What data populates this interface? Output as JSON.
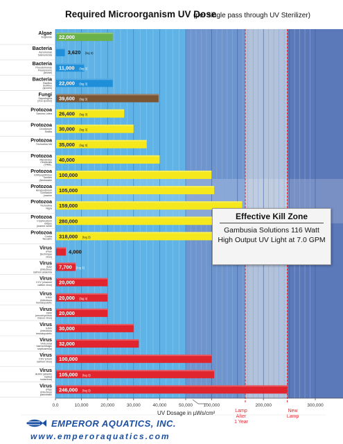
{
  "chart_data": {
    "type": "bar",
    "orientation": "horizontal",
    "title": "Required Microorganism UV Dose",
    "subtitle": "(per single pass through UV Sterilizer)",
    "xlabel": "UV Dosage in µWs/cm²",
    "x_ticks": [
      "0.0",
      "10,000",
      "20,000",
      "30,000",
      "40,000",
      "50,000",
      "100,000",
      "200,000",
      "300,000"
    ],
    "x_scale": "piecewise: linear 0–50,000, then compressed 50,000–300,000",
    "grid": true,
    "categories": [
      {
        "group": "Algae",
        "name": "Euglenas",
        "value": 22000,
        "label": "22,000",
        "color": "#6bb24a"
      },
      {
        "group": "Bacteria",
        "name": "Aeromonas Salmonicida",
        "value": 3620,
        "label": "3,620",
        "log": "(log 3)",
        "color": "#1e8fd8"
      },
      {
        "group": "Bacteria",
        "name": "Pseudomonas Fluorescens (larvae)",
        "value": 11000,
        "label": "11,000",
        "log": "(log 3)",
        "color": "#1e8fd8"
      },
      {
        "group": "Bacteria",
        "name": "Bacillus Subtilus (spores)",
        "value": 22000,
        "label": "22,000",
        "log": "(log 3)",
        "color": "#1e8fd8"
      },
      {
        "group": "Fungi",
        "name": "Saprolegnia (Zoo spores)",
        "value": 39600,
        "label": "39,600",
        "log": "(log 3)",
        "color": "#7b5634"
      },
      {
        "group": "Protozoa",
        "name": "Sarcina Lutea",
        "value": 26400,
        "label": "26,400",
        "log": "(log 3)",
        "color": "#f5e81c"
      },
      {
        "group": "Protozoa",
        "name": "Cicodonym Shatla",
        "value": 30000,
        "label": "30,000",
        "log": "(log 3)",
        "color": "#f5e81c"
      },
      {
        "group": "Protozoa",
        "name": "Trichodina NA",
        "value": 35000,
        "label": "35,000",
        "log": "(log 3)",
        "color": "#f5e81c"
      },
      {
        "group": "Protozoa",
        "name": "Myxobolus Cerebralis (TAMs, Whirling Disease)",
        "value": 40000,
        "label": "40,000",
        "color": "#f5e81c"
      },
      {
        "group": "Protozoa",
        "name": "Ichthyophthirius Tomites (freshwater white spot)",
        "value": 100000,
        "label": "100,000",
        "color": "#f5e81c"
      },
      {
        "group": "Protozoa",
        "name": "Amyloodinium Ocellatum (marine velvet)",
        "value": 105000,
        "label": "105,000",
        "color": "#f5e81c"
      },
      {
        "group": "Protozoa",
        "name": "Trichodina Nigra",
        "value": 159000,
        "label": "159,000",
        "color": "#f5e81c"
      },
      {
        "group": "Protozoa",
        "name": "Cryptocaryon Irritans (marine white spot)",
        "value": 280000,
        "label": "280,000",
        "color": "#f5e81c"
      },
      {
        "group": "Protozoa",
        "name": "Costia Necatrix",
        "value": 318000,
        "label": "318,000",
        "log": "(log 3)",
        "color": "#f5e81c"
      },
      {
        "group": "Virus",
        "name": "IPNV (technique virus)",
        "value": 4000,
        "label": "4,000",
        "color": "#e0252e"
      },
      {
        "group": "Virus",
        "name": "ISAV (infectious salmon anaemia virus)",
        "value": 7700,
        "label": "7,700",
        "log": "(log 3)",
        "color": "#e0252e"
      },
      {
        "group": "Virus",
        "name": "CCV (channel catfish virus)",
        "value": 20000,
        "label": "20,000",
        "color": "#e0252e"
      },
      {
        "group": "Virus",
        "name": "IHNV (infectious hematopoietic necrosis/CHAB)",
        "value": 20000,
        "label": "20,000",
        "log": "(log 3)",
        "color": "#e0252e"
      },
      {
        "group": "Virus",
        "name": "OMV (oncorhynchus masou virus)",
        "value": 20000,
        "label": "20,000",
        "color": "#e0252e"
      },
      {
        "group": "Virus",
        "name": "IHNV (infectious hematopoietic necrosis/STRO)",
        "value": 30000,
        "label": "30,000",
        "color": "#e0252e"
      },
      {
        "group": "Virus",
        "name": "VHS (viral haemorrhagic septicaemia)",
        "value": 32000,
        "label": "32,000",
        "color": "#e0252e"
      },
      {
        "group": "Virus",
        "name": "CSV (chum salmon virus)",
        "value": 100000,
        "label": "100,000",
        "color": "#e0252e"
      },
      {
        "group": "Virus",
        "name": "AHNV (atlantic halibut nodavirus)",
        "value": 105000,
        "label": "105,000",
        "log": "(log 3)",
        "color": "#e0252e"
      },
      {
        "group": "Virus",
        "name": "IPNV (infectious pancreatic necrosis virus)",
        "value": 246000,
        "label": "246,000",
        "log": "(log 3)",
        "color": "#e0252e"
      }
    ],
    "markers": [
      {
        "label": "Lamp After 1 Year",
        "value": 165000
      },
      {
        "label": "New Lamp",
        "value": 246000
      }
    ]
  },
  "kill_zone": {
    "title": "Effective Kill Zone",
    "description": "Gambusia Solutions 116 Watt High Output UV Light at 7.0 GPM"
  },
  "footer": {
    "brand": "EMPEROR AQUATICS, INC.",
    "website": "www.emperoraquatics.com",
    "brand_color": "#1b4fa3"
  }
}
